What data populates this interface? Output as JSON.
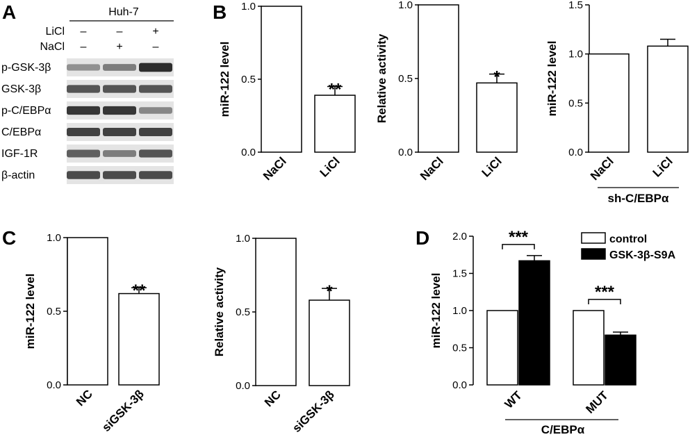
{
  "panels": {
    "A": {
      "letter": "A",
      "cell_line": "Huh-7",
      "treatments": [
        {
          "label": "LiCl",
          "marks": [
            "–",
            "–",
            "+"
          ]
        },
        {
          "label": "NaCl",
          "marks": [
            "–",
            "+",
            "–"
          ]
        }
      ],
      "bands": [
        {
          "label": "p-GSK-3β",
          "intensity": [
            0.45,
            0.55,
            0.95
          ]
        },
        {
          "label": "GSK-3β",
          "intensity": [
            0.75,
            0.75,
            0.75
          ]
        },
        {
          "label": "p-C/EBPα",
          "intensity": [
            0.9,
            0.9,
            0.5
          ]
        },
        {
          "label": "C/EBPα",
          "intensity": [
            0.85,
            0.85,
            0.85
          ]
        },
        {
          "label": "IGF-1R",
          "intensity": [
            0.7,
            0.55,
            0.75
          ]
        },
        {
          "label": "β-actin",
          "intensity": [
            0.8,
            0.8,
            0.8
          ]
        }
      ]
    },
    "B": {
      "letter": "B"
    },
    "C": {
      "letter": "C"
    },
    "D": {
      "letter": "D"
    }
  },
  "chart_data": [
    {
      "id": "B1",
      "type": "bar",
      "panel": "B",
      "categories": [
        "NaCl",
        "LiCl"
      ],
      "values": [
        1.0,
        0.39
      ],
      "errors": [
        0,
        0.06
      ],
      "ylabel": "miR-122 level",
      "ylim": [
        0,
        1.0
      ],
      "yticks": [
        "0.0",
        "0.5",
        "1.0"
      ],
      "significance": [
        "",
        "**"
      ]
    },
    {
      "id": "B2",
      "type": "bar",
      "panel": "B",
      "categories": [
        "NaCl",
        "LiCl"
      ],
      "values": [
        1.0,
        0.47
      ],
      "errors": [
        0,
        0.06
      ],
      "ylabel": "Relative activity",
      "ylim": [
        0,
        1.0
      ],
      "yticks": [
        "0.0",
        "0.5",
        "1.0"
      ],
      "significance": [
        "",
        "*"
      ]
    },
    {
      "id": "B3",
      "type": "bar",
      "panel": "B",
      "categories": [
        "NaCl",
        "LiCl"
      ],
      "values": [
        1.0,
        1.08
      ],
      "errors": [
        0,
        0.07
      ],
      "ylabel": "miR-122 level",
      "ylim": [
        0,
        1.5
      ],
      "yticks": [
        "0.0",
        "0.5",
        "1.0",
        "1.5"
      ],
      "significance": [
        "",
        ""
      ],
      "group_label": "sh-C/EBPα"
    },
    {
      "id": "C1",
      "type": "bar",
      "panel": "C",
      "categories": [
        "NC",
        "siGSK-3β"
      ],
      "values": [
        1.0,
        0.62
      ],
      "errors": [
        0,
        0.04
      ],
      "ylabel": "miR-122 level",
      "ylim": [
        0,
        1.0
      ],
      "yticks": [
        "0.0",
        "0.5",
        "1.0"
      ],
      "significance": [
        "",
        "**"
      ]
    },
    {
      "id": "C2",
      "type": "bar",
      "panel": "C",
      "categories": [
        "NC",
        "siGSK-3β"
      ],
      "values": [
        1.0,
        0.58
      ],
      "errors": [
        0,
        0.08
      ],
      "ylabel": "Relative activity",
      "ylim": [
        0,
        1.0
      ],
      "yticks": [
        "0.0",
        "0.5",
        "1.0"
      ],
      "significance": [
        "",
        "*"
      ]
    },
    {
      "id": "D1",
      "type": "bar",
      "panel": "D",
      "categories": [
        "WT",
        "MUT"
      ],
      "series": [
        {
          "name": "control",
          "values": [
            1.0,
            1.0
          ],
          "errors": [
            0,
            0
          ],
          "color": "#ffffff"
        },
        {
          "name": "GSK-3β-S9A",
          "values": [
            1.67,
            0.67
          ],
          "errors": [
            0.07,
            0.04
          ],
          "color": "#000000"
        }
      ],
      "ylabel": "miR-122 level",
      "ylim": [
        0,
        2.0
      ],
      "yticks": [
        "0.0",
        "0.5",
        "1.0",
        "1.5",
        "2.0"
      ],
      "significance": [
        "***",
        "***"
      ],
      "group_label": "C/EBPα",
      "legend": "top-right"
    }
  ]
}
